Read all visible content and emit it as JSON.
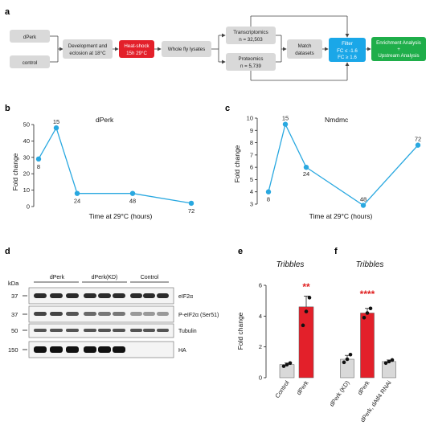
{
  "panels": {
    "a": "a",
    "b": "b",
    "c": "c",
    "d": "d",
    "e": "e",
    "f": "f"
  },
  "flowchart": {
    "dperk": "dPerk",
    "control": "control",
    "development_line1": "Development and",
    "development_line2": "eclosion at 18°C",
    "heatshock_line1": "Heat-shock",
    "heatshock_line2": "15h 29°C",
    "lysates": "Whole fly lysates",
    "transcriptomics_line1": "Transcriptomics",
    "transcriptomics_line2": "n = 32,503",
    "proteomics_line1": "Proteomics",
    "proteomics_line2": "n = 5,739",
    "match_line1": "Match",
    "match_line2": "datasets",
    "filter_line1": "Filter",
    "filter_line2": "FC ≤ -1.6",
    "filter_line3": "FC ≥ 1.6",
    "enrich_line1": "Enrichment Analysis",
    "enrich_line2": "+",
    "enrich_line3": "Upstream Analysis",
    "colors": {
      "grey_box": "#d9d9d9",
      "heatshock": "#e3202a",
      "filter": "#1aa7e8",
      "enrich": "#1fae4a"
    }
  },
  "chart_data": [
    {
      "type": "line",
      "panel": "b",
      "title": "dPerk",
      "xlabel": "Time at 29°C (hours)",
      "ylabel": "Fold change",
      "ylim": [
        0,
        50
      ],
      "yticks": [
        "0",
        "10",
        "20",
        "30",
        "40",
        "50"
      ],
      "x": [
        8,
        15,
        24,
        48,
        72
      ],
      "values": [
        29,
        48,
        8,
        8,
        2
      ],
      "point_labels": [
        "8",
        "15",
        "24",
        "48",
        "72"
      ],
      "color": "#29a8e0"
    },
    {
      "type": "line",
      "panel": "c",
      "title": "Nmdmc",
      "xlabel": "Time at 29°C (hours)",
      "ylabel": "Fold change",
      "ylim": [
        3,
        10
      ],
      "yticks": [
        "3",
        "4",
        "5",
        "6",
        "7",
        "8",
        "9",
        "10"
      ],
      "x": [
        8,
        15,
        24,
        48,
        72
      ],
      "values": [
        4,
        9.5,
        6,
        2.9,
        7.8
      ],
      "point_labels": [
        "8",
        "15",
        "24",
        "48",
        "72"
      ],
      "color": "#29a8e0"
    },
    {
      "type": "bar",
      "panel": "e",
      "title": "Tribbles",
      "ylabel": "Fold change",
      "ylim": [
        0,
        6
      ],
      "yticks": [
        "0",
        "2",
        "4",
        "6"
      ],
      "categories": [
        "Control",
        "dPerk"
      ],
      "values": [
        0.85,
        4.6
      ],
      "errors": [
        0.1,
        0.7
      ],
      "points": [
        [
          0.75,
          0.85,
          0.95
        ],
        [
          3.4,
          4.3,
          5.2
        ]
      ],
      "colors": [
        "#d9d9d9",
        "#e3202a"
      ],
      "significance": "**"
    },
    {
      "type": "bar",
      "panel": "f",
      "title": "Tribbles",
      "ylim": [
        0,
        6
      ],
      "categories": [
        "dPerk (KD)",
        "dPerk",
        "dPerk, dAtf4 RNAi"
      ],
      "values": [
        1.2,
        4.2,
        1.05
      ],
      "errors": [
        0.25,
        0.3,
        0.1
      ],
      "points": [
        [
          1.0,
          1.2,
          1.5
        ],
        [
          3.9,
          4.2,
          4.5
        ],
        [
          0.95,
          1.05,
          1.15
        ]
      ],
      "colors": [
        "#d9d9d9",
        "#e3202a",
        "#d9d9d9"
      ],
      "significance": "****"
    }
  ],
  "blot": {
    "kda_label": "kDa",
    "groups": [
      "dPerk",
      "dPerk(KD)",
      "Control"
    ],
    "rows": [
      {
        "kda": "37",
        "label": "eIF2α"
      },
      {
        "kda": "37",
        "label": "P-eIF2α (Ser51)"
      },
      {
        "kda": "50",
        "label": "Tubulin"
      },
      {
        "kda": "150",
        "label": "HA"
      }
    ]
  }
}
